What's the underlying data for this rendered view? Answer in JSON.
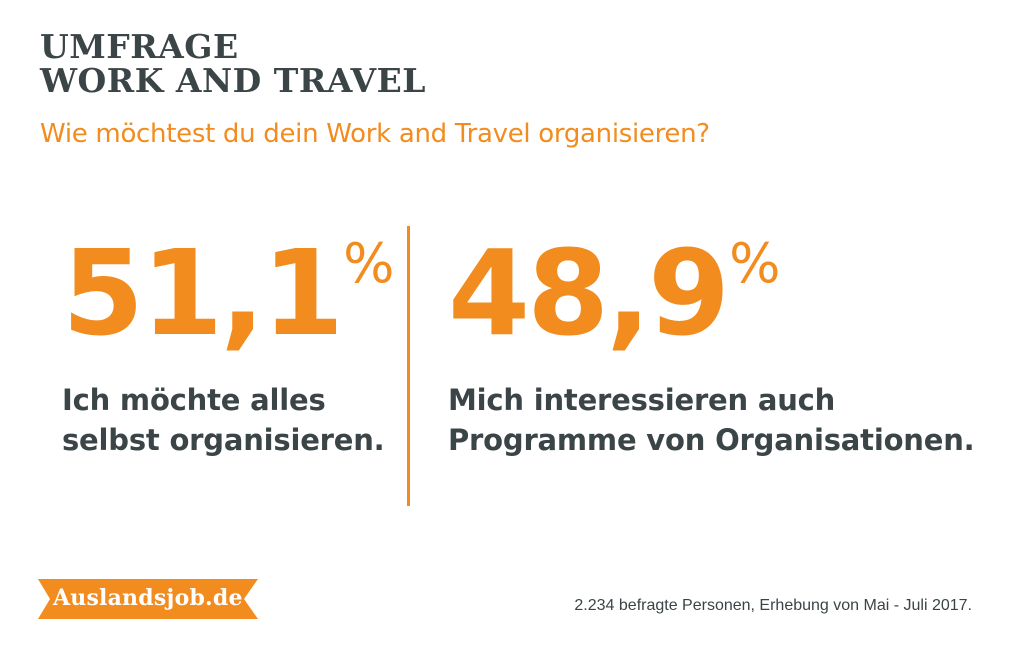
{
  "header": {
    "title_line1": "UMFRAGE",
    "title_line2": "WORK AND TRAVEL",
    "question": "Wie möchtest du dein Work and Travel organisieren?"
  },
  "stats": [
    {
      "value": "51,1",
      "unit": "%",
      "label_line1": "Ich möchte alles",
      "label_line2": "selbst organisieren."
    },
    {
      "value": "48,9",
      "unit": "%",
      "label_line1": "Mich interessieren auch",
      "label_line2": "Programme von Organisationen."
    }
  ],
  "brand": {
    "logo_text": "Auslandsjob.de"
  },
  "footer": {
    "note": "2.234 befragte Personen, Erhebung von Mai - Juli 2017."
  },
  "colors": {
    "accent": "#f28c1f",
    "text_dark": "#3b4446",
    "background": "#ffffff"
  },
  "chart_data": {
    "type": "table",
    "title": "UMFRAGE WORK AND TRAVEL",
    "subtitle": "Wie möchtest du dein Work and Travel organisieren?",
    "categories": [
      "Ich möchte alles selbst organisieren.",
      "Mich interessieren auch Programme von Organisationen."
    ],
    "values": [
      51.1,
      48.9
    ],
    "unit": "%"
  }
}
